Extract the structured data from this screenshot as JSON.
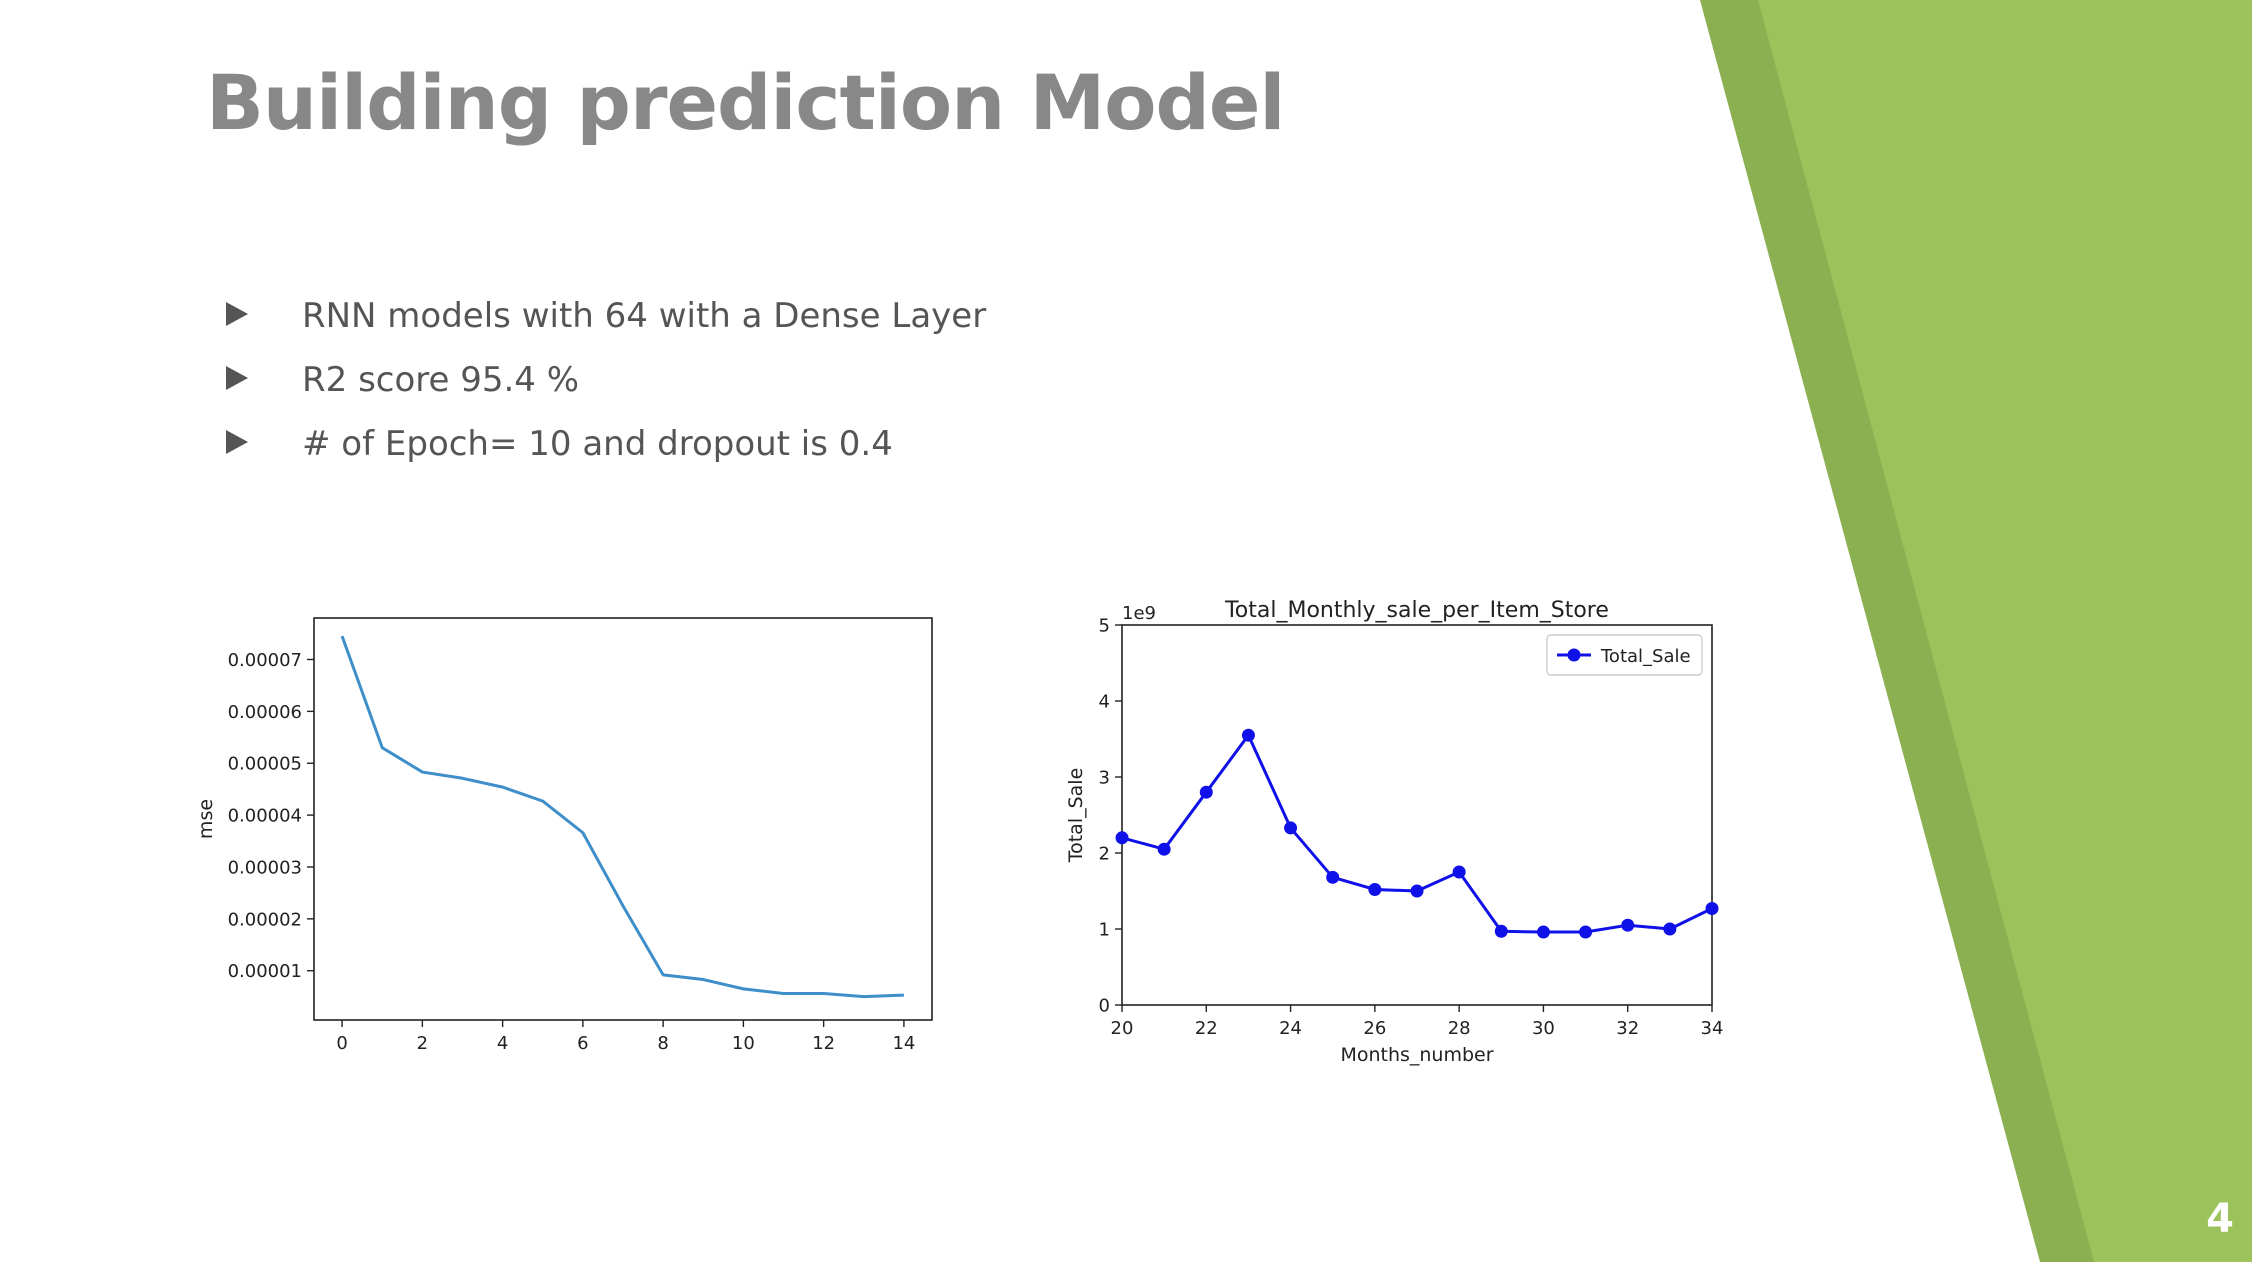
{
  "slide": {
    "title": "Building prediction Model",
    "bullets": [
      "RNN models with 64 with a Dense Layer",
      "R2 score 95.4 %",
      "# of Epoch= 10 and dropout is 0.4"
    ],
    "page_number": "4",
    "colors": {
      "accent_dark": "#8bb052",
      "accent_light": "#9bc25b",
      "title": "#888888",
      "text": "#555555"
    }
  },
  "chart_data": [
    {
      "type": "line",
      "title": "",
      "xlabel": "",
      "ylabel": "mse",
      "x": [
        0,
        1,
        2,
        3,
        4,
        5,
        6,
        7,
        8,
        9,
        10,
        11,
        12,
        13,
        14
      ],
      "series": [
        {
          "color": "#3d8ec9",
          "marker": "none",
          "values": [
            7.45e-05,
            5.3e-05,
            4.83e-05,
            4.71e-05,
            4.54e-05,
            4.27e-05,
            3.66e-05,
            2.25e-05,
            9.2e-06,
            8.3e-06,
            6.5e-06,
            5.6e-06,
            5.6e-06,
            5e-06,
            5.3e-06
          ]
        }
      ],
      "xlim": [
        -0.7,
        14.7
      ],
      "ylim": [
        5e-07,
        7.8e-05
      ],
      "xticks": [
        0,
        2,
        4,
        6,
        8,
        10,
        12,
        14
      ],
      "xtick_labels": [
        "0",
        "2",
        "4",
        "6",
        "8",
        "10",
        "12",
        "14"
      ],
      "yticks": [
        1e-05,
        2e-05,
        3e-05,
        4e-05,
        5e-05,
        6e-05,
        7e-05
      ],
      "ytick_labels": [
        "0.00001",
        "0.00002",
        "0.00003",
        "0.00004",
        "0.00005",
        "0.00006",
        "0.00007"
      ],
      "grid": false
    },
    {
      "type": "line",
      "title": "Total_Monthly_sale_per_Item_Store",
      "xlabel": "Months_number",
      "ylabel": "Total_Sale",
      "y_offset_label": "1e9",
      "x": [
        20,
        21,
        22,
        23,
        24,
        25,
        26,
        27,
        28,
        29,
        30,
        31,
        32,
        33,
        34
      ],
      "series": [
        {
          "name": "Total_Sale",
          "color": "#1010e8",
          "marker": "circle",
          "values": [
            2.2,
            2.05,
            2.8,
            3.55,
            2.33,
            1.68,
            1.52,
            1.5,
            1.75,
            0.97,
            0.96,
            0.96,
            1.05,
            1.0,
            1.27
          ]
        }
      ],
      "xlim": [
        20,
        34
      ],
      "ylim": [
        0,
        5
      ],
      "xticks": [
        20,
        22,
        24,
        26,
        28,
        30,
        32,
        34
      ],
      "xtick_labels": [
        "20",
        "22",
        "24",
        "26",
        "28",
        "30",
        "32",
        "34"
      ],
      "yticks": [
        0,
        1,
        2,
        3,
        4,
        5
      ],
      "ytick_labels": [
        "0",
        "1",
        "2",
        "3",
        "4",
        "5"
      ],
      "legend": "top-right",
      "grid": false
    }
  ]
}
